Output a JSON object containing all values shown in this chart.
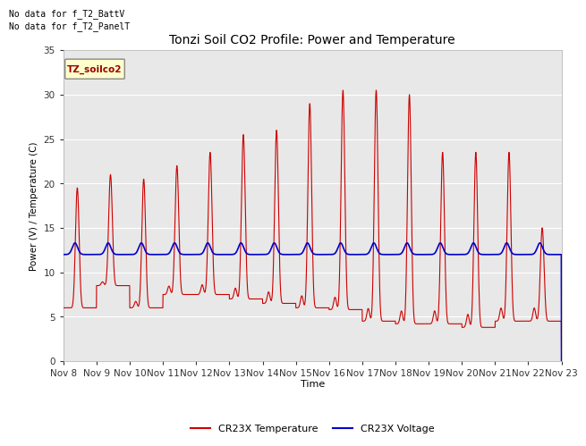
{
  "title": "Tonzi Soil CO2 Profile: Power and Temperature",
  "ylabel": "Power (V) / Temperature (C)",
  "xlabel": "Time",
  "ylim": [
    0,
    35
  ],
  "yticks": [
    0,
    5,
    10,
    15,
    20,
    25,
    30,
    35
  ],
  "bg_color": "#ffffff",
  "plot_bg_color": "#e8e8e8",
  "no_data_text1": "No data for f_T2_BattV",
  "no_data_text2": "No data for f_T2_PanelT",
  "legend_box_label": "TZ_soilco2",
  "legend_box_color": "#ffffcc",
  "legend_box_border": "#aaaaaa",
  "temp_color": "#cc0000",
  "volt_color": "#0000cc",
  "temp_label": "CR23X Temperature",
  "volt_label": "CR23X Voltage",
  "xtick_labels": [
    "Nov 8",
    "Nov 9",
    "Nov 10",
    "Nov 11",
    "Nov 12",
    "Nov 13",
    "Nov 14",
    "Nov 15",
    "Nov 16",
    "Nov 17",
    "Nov 18",
    "Nov 19",
    "Nov 20",
    "Nov 21",
    "Nov 22",
    "Nov 23"
  ],
  "day_peaks": [
    19.5,
    21.0,
    20.5,
    22.0,
    23.5,
    25.5,
    26.0,
    29.0,
    30.5,
    30.5,
    30.0,
    23.5,
    23.5,
    23.5,
    15.0
  ],
  "day_troughs": [
    6.0,
    8.5,
    6.0,
    7.5,
    7.5,
    7.0,
    6.5,
    6.0,
    5.8,
    4.5,
    4.2,
    4.2,
    3.8,
    4.5,
    4.5
  ],
  "volt_base": 12.0,
  "volt_bump": 1.3,
  "sharpness": 8.0
}
